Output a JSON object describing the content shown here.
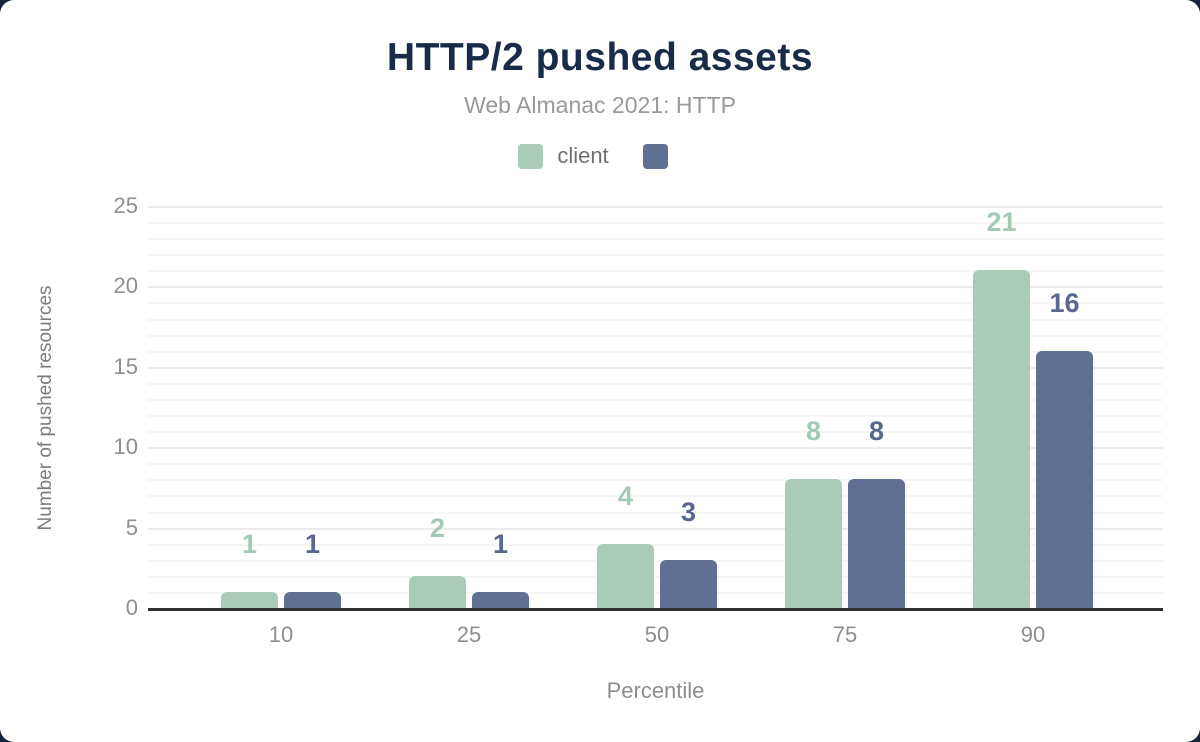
{
  "page": {
    "card_background": "#ffffff",
    "outside_background": "#16233c"
  },
  "chart_data": {
    "type": "bar",
    "title": "HTTP/2 pushed assets",
    "subtitle": "Web Almanac 2021: HTTP",
    "xlabel": "Percentile",
    "ylabel": "Number of pushed resources",
    "categories": [
      "10",
      "25",
      "50",
      "75",
      "90"
    ],
    "series": [
      {
        "name": "client",
        "color": "#a9cbb8",
        "label_color": "#a4c9b5",
        "values": [
          1,
          2,
          4,
          8,
          21
        ]
      },
      {
        "name": "",
        "color": "#5f7092",
        "label_color": "#58688e",
        "values": [
          1,
          1,
          3,
          8,
          16
        ]
      }
    ],
    "ylim": [
      0,
      25
    ],
    "ytick_step": 5,
    "minor_grid_step": 1,
    "grid": true,
    "legend_position": "top",
    "axis_color": "#2e2f31",
    "tick_label_color": "#8d8e90"
  }
}
